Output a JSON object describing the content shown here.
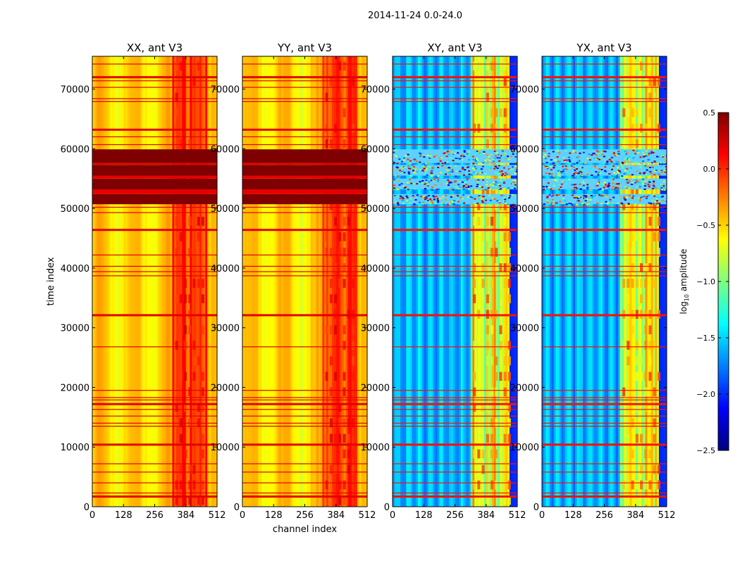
{
  "figure": {
    "suptitle": "2014-11-24 0.0-24.0"
  },
  "chart_data": [
    {
      "type": "heatmap",
      "title": "XX, ant V3",
      "kind": "auto",
      "xlabel": "",
      "ylabel": "time index",
      "xlim": [
        0,
        512
      ],
      "ylim": [
        0,
        75500
      ],
      "xticks": [
        0,
        128,
        256,
        384,
        512
      ],
      "yticks": [
        0,
        10000,
        20000,
        30000,
        40000,
        50000,
        60000,
        70000
      ],
      "show_yticklabels": true
    },
    {
      "type": "heatmap",
      "title": "YY, ant V3",
      "kind": "auto",
      "xlabel": "channel index",
      "ylabel": "",
      "xlim": [
        0,
        512
      ],
      "ylim": [
        0,
        75500
      ],
      "xticks": [
        0,
        128,
        256,
        384,
        512
      ],
      "yticks": [
        0,
        10000,
        20000,
        30000,
        40000,
        50000,
        60000,
        70000
      ],
      "show_yticklabels": true
    },
    {
      "type": "heatmap",
      "title": "XY, ant V3",
      "kind": "cross",
      "xlabel": "",
      "ylabel": "",
      "xlim": [
        0,
        512
      ],
      "ylim": [
        0,
        75500
      ],
      "xticks": [
        0,
        128,
        256,
        384,
        512
      ],
      "yticks": [
        0,
        10000,
        20000,
        30000,
        40000,
        50000,
        60000,
        70000
      ],
      "show_yticklabels": true
    },
    {
      "type": "heatmap",
      "title": "YX, ant V3",
      "kind": "cross",
      "xlabel": "",
      "ylabel": "",
      "xlim": [
        0,
        512
      ],
      "ylim": [
        0,
        75500
      ],
      "xticks": [
        0,
        128,
        256,
        384,
        512
      ],
      "yticks": [
        0,
        10000,
        20000,
        30000,
        40000,
        50000,
        60000,
        70000
      ],
      "show_yticklabels": true
    }
  ],
  "colorbar": {
    "label": "log10 amplitude",
    "label_base": "log",
    "label_sub": "10",
    "label_rest": " amplitude",
    "range": [
      -2.5,
      0.5
    ],
    "ticks": [
      0.5,
      0.0,
      -0.5,
      -1.0,
      -1.5,
      -2.0,
      -2.5
    ],
    "tick_labels": [
      "0.5",
      "0.0",
      "−0.5",
      "−1.0",
      "−1.5",
      "−2.0",
      "−2.5"
    ],
    "colormap": "jet",
    "colors": [
      "#00007f",
      "#0000ff",
      "#007fff",
      "#00ffff",
      "#7fff7f",
      "#ffff00",
      "#ff7f00",
      "#ff0000",
      "#7f0000"
    ]
  }
}
